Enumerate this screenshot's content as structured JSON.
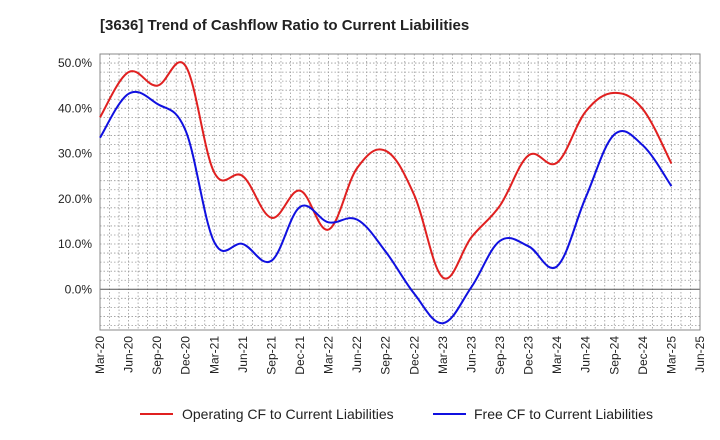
{
  "chart_data": {
    "type": "line",
    "title": "[3636]  Trend of Cashflow Ratio to Current Liabilities",
    "xlabel": "",
    "ylabel": "",
    "x": [
      "Mar-20",
      "Jun-20",
      "Sep-20",
      "Dec-20",
      "Mar-21",
      "Jun-21",
      "Sep-21",
      "Dec-21",
      "Mar-22",
      "Jun-22",
      "Sep-22",
      "Dec-22",
      "Mar-23",
      "Jun-23",
      "Sep-23",
      "Dec-23",
      "Mar-24",
      "Jun-24",
      "Sep-24",
      "Dec-24",
      "Mar-25",
      "Jun-25"
    ],
    "ylim": [
      -9,
      52
    ],
    "yticks": [
      0,
      10,
      20,
      30,
      40,
      50
    ],
    "ytick_labels": [
      "0.0%",
      "10.0%",
      "20.0%",
      "30.0%",
      "40.0%",
      "50.0%"
    ],
    "grid": true,
    "legend_position": "bottom",
    "series": [
      {
        "name": "Operating CF to Current Liabilities",
        "color": "#e02020",
        "values": [
          38.0,
          48.0,
          45.0,
          49.3,
          25.8,
          25.0,
          15.8,
          21.8,
          13.2,
          26.8,
          30.6,
          20.8,
          2.6,
          11.5,
          18.5,
          29.6,
          28.0,
          39.3,
          43.4,
          39.8,
          27.8,
          null
        ]
      },
      {
        "name": "Free CF to Current Liabilities",
        "color": "#1010e0",
        "values": [
          33.5,
          43.2,
          41.0,
          35.0,
          10.4,
          10.0,
          6.3,
          18.2,
          14.8,
          15.4,
          8.3,
          -1.0,
          -7.5,
          0.5,
          10.7,
          9.5,
          5.1,
          20.3,
          34.2,
          31.8,
          22.8,
          null
        ]
      }
    ]
  }
}
